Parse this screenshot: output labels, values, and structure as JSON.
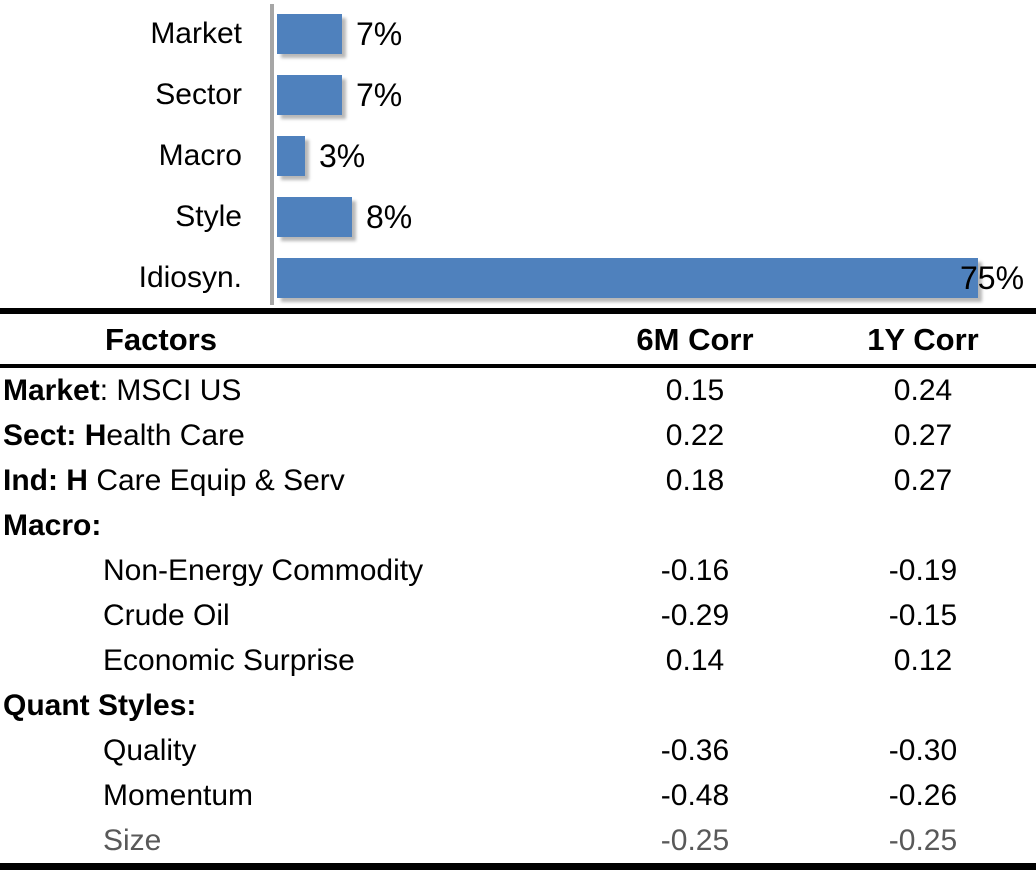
{
  "chart_data": {
    "type": "bar",
    "orientation": "horizontal",
    "title": "",
    "xlabel": "",
    "ylabel": "",
    "categories": [
      "Market",
      "Sector",
      "Macro",
      "Style",
      "Idiosyn."
    ],
    "values": [
      7,
      7,
      3,
      8,
      75
    ],
    "labels": [
      "7%",
      "7%",
      "3%",
      "8%",
      "75%"
    ],
    "unit": "%",
    "xlim": [
      0,
      75
    ],
    "grid": false,
    "legend": false,
    "bar_color": "#4f81bd",
    "axis_color": "#a6a6a6"
  },
  "colors": {
    "bar_blue": "#4f81bd",
    "axis_gray": "#a6a6a6",
    "muted_text": "#595959",
    "rule_black": "#000000"
  },
  "table": {
    "headers": [
      "Factors",
      "6M Corr",
      "1Y Corr"
    ],
    "rows": [
      {
        "bold": "Market",
        "rest": ": MSCI US",
        "c6m": "0.15",
        "c1y": "0.24",
        "indent": false,
        "muted": false
      },
      {
        "bold": "Sect: H",
        "rest": "ealth Care",
        "c6m": "0.22",
        "c1y": "0.27",
        "indent": false,
        "muted": false
      },
      {
        "bold": "Ind: H",
        "rest": " Care Equip & Serv",
        "c6m": "0.18",
        "c1y": "0.27",
        "indent": false,
        "muted": false
      },
      {
        "bold": "Macro:",
        "rest": "",
        "c6m": "",
        "c1y": "",
        "indent": false,
        "muted": false
      },
      {
        "bold": "",
        "rest": "Non-Energy Commodity",
        "c6m": "-0.16",
        "c1y": "-0.19",
        "indent": true,
        "muted": false
      },
      {
        "bold": "",
        "rest": "Crude Oil",
        "c6m": "-0.29",
        "c1y": "-0.15",
        "indent": true,
        "muted": false
      },
      {
        "bold": "",
        "rest": "Economic Surprise",
        "c6m": "0.14",
        "c1y": "0.12",
        "indent": true,
        "muted": false
      },
      {
        "bold": "Quant Styles:",
        "rest": "",
        "c6m": "",
        "c1y": "",
        "indent": false,
        "muted": false
      },
      {
        "bold": "",
        "rest": "Quality",
        "c6m": "-0.36",
        "c1y": "-0.30",
        "indent": true,
        "muted": false
      },
      {
        "bold": "",
        "rest": "Momentum",
        "c6m": "-0.48",
        "c1y": "-0.26",
        "indent": true,
        "muted": false
      },
      {
        "bold": "",
        "rest": "Size",
        "c6m": "-0.25",
        "c1y": "-0.25",
        "indent": true,
        "muted": true
      }
    ]
  }
}
